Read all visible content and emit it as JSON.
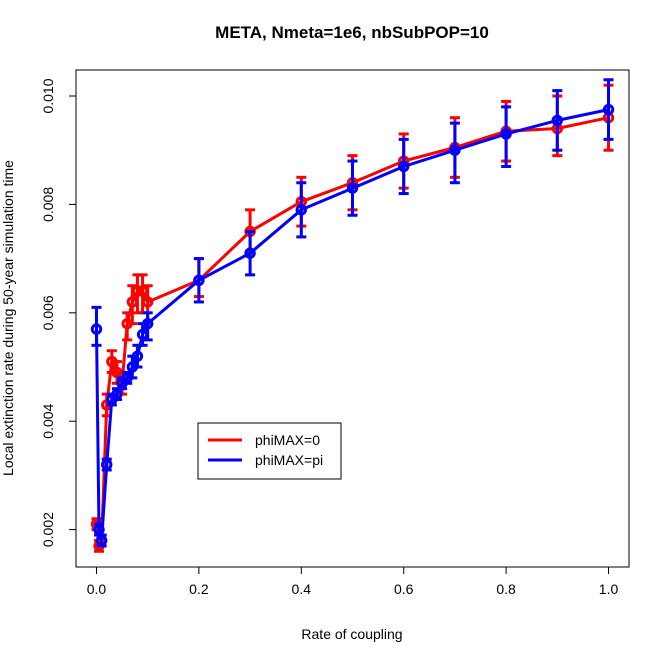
{
  "chart_data": {
    "type": "line",
    "title": "META, Nmeta=1e6, nbSubPOP=10",
    "xlabel": "Rate of coupling",
    "ylabel": "Local extinction rate during 50-year simulation time",
    "xlim": [
      -0.04,
      1.04
    ],
    "ylim": [
      0.00131,
      0.01048
    ],
    "xticks": [
      0.0,
      0.2,
      0.4,
      0.6,
      0.8,
      1.0
    ],
    "xtick_labels": [
      "0.0",
      "0.2",
      "0.4",
      "0.6",
      "0.8",
      "1.0"
    ],
    "yticks": [
      0.002,
      0.004,
      0.006,
      0.008,
      0.01
    ],
    "ytick_labels": [
      "0.002",
      "0.004",
      "0.006",
      "0.008",
      "0.010"
    ],
    "grid": false,
    "legend_position": "bottom-left-inside",
    "series": [
      {
        "name": "phiMAX=0",
        "color": "#ff0000",
        "x": [
          0.0,
          0.005,
          0.01,
          0.02,
          0.03,
          0.04,
          0.05,
          0.06,
          0.07,
          0.08,
          0.09,
          0.1,
          0.2,
          0.3,
          0.4,
          0.5,
          0.6,
          0.7,
          0.8,
          0.9,
          1.0
        ],
        "y": [
          0.0021,
          0.0017,
          0.0018,
          0.0043,
          0.0051,
          0.0049,
          0.0047,
          0.0058,
          0.0062,
          0.0064,
          0.0064,
          0.0062,
          0.0066,
          0.0075,
          0.00805,
          0.0084,
          0.0088,
          0.00905,
          0.00935,
          0.0094,
          0.0096
        ],
        "ylow": [
          0.002,
          0.0016,
          0.0017,
          0.0041,
          0.0049,
          0.0047,
          0.0045,
          0.0055,
          0.0058,
          0.006,
          0.006,
          0.0058,
          0.0063,
          0.0071,
          0.0076,
          0.0079,
          0.0083,
          0.0085,
          0.0088,
          0.0089,
          0.009
        ],
        "yhigh": [
          0.0022,
          0.0018,
          0.0019,
          0.0045,
          0.0053,
          0.0051,
          0.0049,
          0.006,
          0.0065,
          0.0067,
          0.0067,
          0.0065,
          0.007,
          0.0079,
          0.0085,
          0.0089,
          0.0093,
          0.0096,
          0.0099,
          0.01,
          0.0102
        ]
      },
      {
        "name": "phiMAX=pi",
        "color": "#0000ff",
        "x": [
          0.0,
          0.005,
          0.01,
          0.02,
          0.03,
          0.04,
          0.05,
          0.06,
          0.07,
          0.08,
          0.09,
          0.1,
          0.2,
          0.3,
          0.4,
          0.5,
          0.6,
          0.7,
          0.8,
          0.9,
          1.0
        ],
        "y": [
          0.0057,
          0.002,
          0.0018,
          0.0032,
          0.0044,
          0.0045,
          0.0047,
          0.0048,
          0.005,
          0.0052,
          0.0056,
          0.0058,
          0.0066,
          0.0071,
          0.0079,
          0.0083,
          0.0087,
          0.009,
          0.0093,
          0.00955,
          0.00975
        ],
        "ylow": [
          0.0054,
          0.0019,
          0.0017,
          0.0031,
          0.0043,
          0.0044,
          0.0046,
          0.0047,
          0.0048,
          0.005,
          0.0054,
          0.0055,
          0.0062,
          0.0067,
          0.0074,
          0.0078,
          0.0082,
          0.0084,
          0.0087,
          0.009,
          0.0092
        ],
        "yhigh": [
          0.0061,
          0.0021,
          0.0019,
          0.0033,
          0.0045,
          0.0046,
          0.0048,
          0.0049,
          0.0052,
          0.0054,
          0.0058,
          0.006,
          0.007,
          0.0075,
          0.0084,
          0.0088,
          0.0092,
          0.0095,
          0.0098,
          0.0101,
          0.0103
        ]
      }
    ]
  }
}
